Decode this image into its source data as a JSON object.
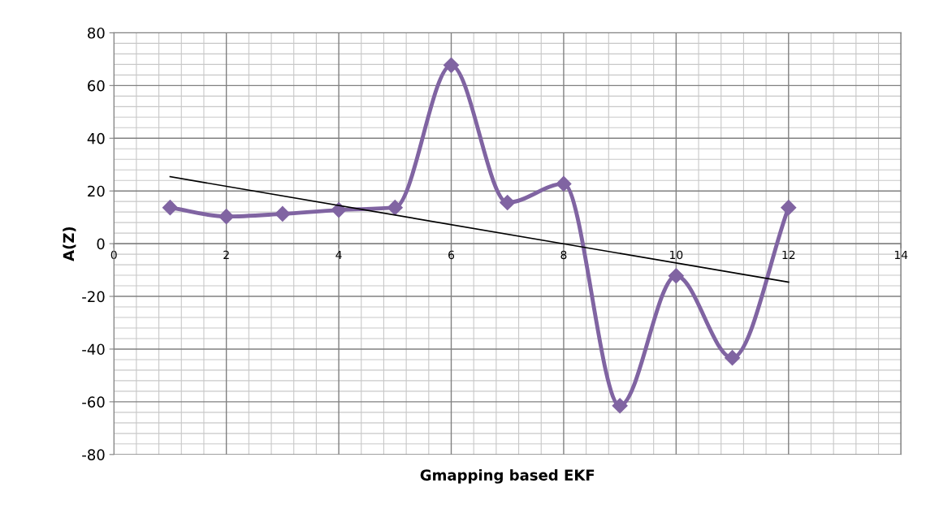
{
  "chart_data": {
    "type": "line",
    "xlabel": "Gmapping based EKF",
    "ylabel": "A(Z)",
    "x": [
      1,
      2,
      3,
      4,
      5,
      6,
      7,
      8,
      9,
      10,
      11,
      12
    ],
    "series": [
      {
        "color": "#8064a2",
        "values": [
          13.7,
          10.3,
          11.3,
          12.8,
          13.7,
          67.7,
          15.6,
          22.7,
          -61.5,
          -12.2,
          -43.3,
          13.7
        ],
        "marker": "diamond"
      },
      {
        "color": "#000000",
        "x": [
          1,
          12
        ],
        "values": [
          25.4,
          -14.6
        ],
        "marker": "none"
      }
    ],
    "xlim": [
      0,
      14
    ],
    "xticks": [
      0,
      2,
      4,
      6,
      8,
      10,
      12,
      14
    ],
    "ylim": [
      -80,
      80
    ],
    "yticks": [
      -80,
      -60,
      -40,
      -20,
      0,
      20,
      40,
      60,
      80
    ],
    "grid": true
  }
}
